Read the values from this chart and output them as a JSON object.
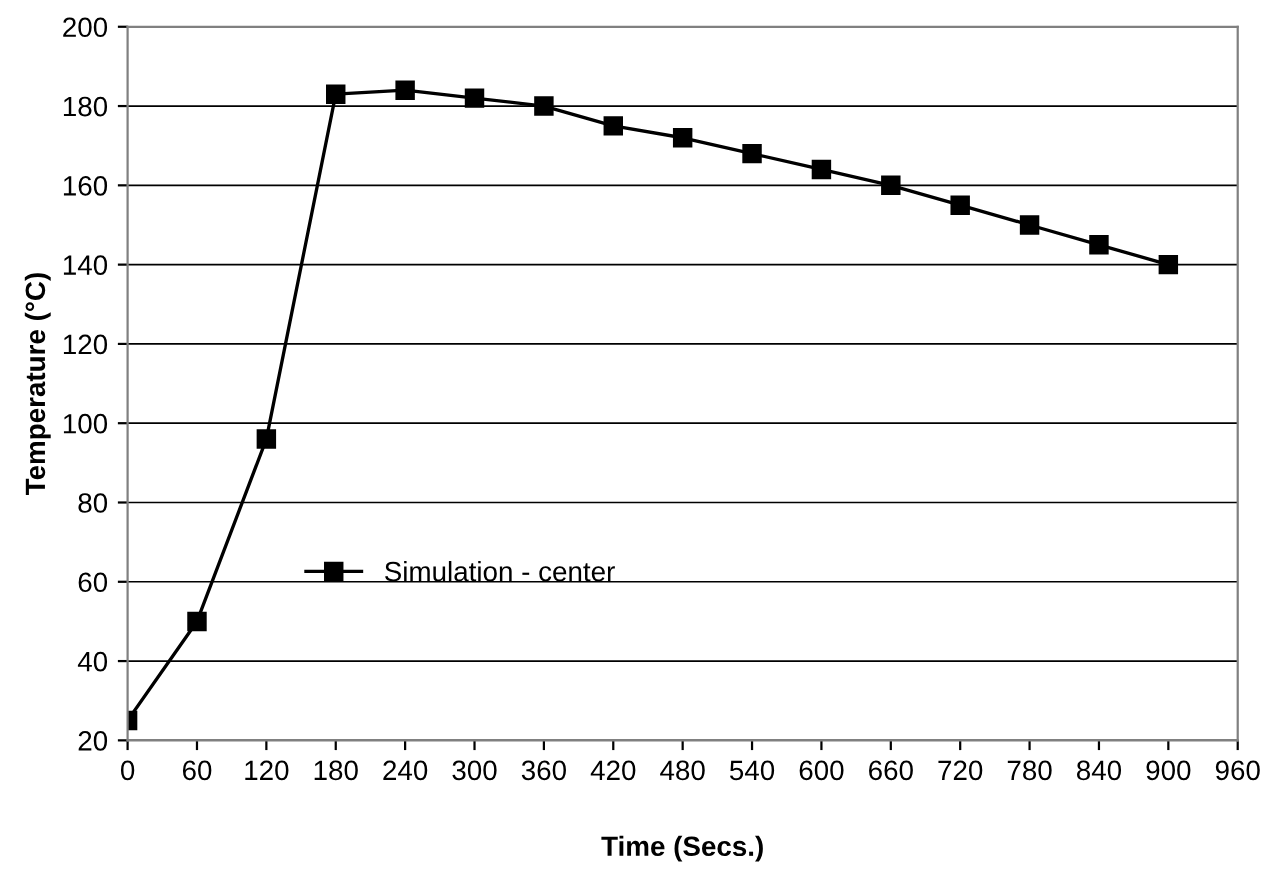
{
  "chart_data": {
    "type": "line",
    "xlabel": "Time (Secs.)",
    "ylabel": "Temperature (°C)",
    "x": [
      0,
      60,
      120,
      180,
      240,
      300,
      360,
      420,
      480,
      540,
      600,
      660,
      720,
      780,
      840,
      900
    ],
    "series": [
      {
        "name": "Simulation - center",
        "color": "#000000",
        "values": [
          25,
          50,
          96,
          183,
          184,
          182,
          180,
          175,
          172,
          168,
          164,
          160,
          155,
          150,
          145,
          140
        ]
      }
    ],
    "xlim": [
      0,
      960
    ],
    "xticks": [
      0,
      60,
      120,
      180,
      240,
      300,
      360,
      420,
      480,
      540,
      600,
      660,
      720,
      780,
      840,
      900,
      960
    ],
    "ylim": [
      20,
      200
    ],
    "yticks": [
      20,
      40,
      60,
      80,
      100,
      120,
      140,
      160,
      180,
      200
    ],
    "grid": "y",
    "legend": "lower center",
    "marker": "square",
    "line_style": "solid"
  }
}
